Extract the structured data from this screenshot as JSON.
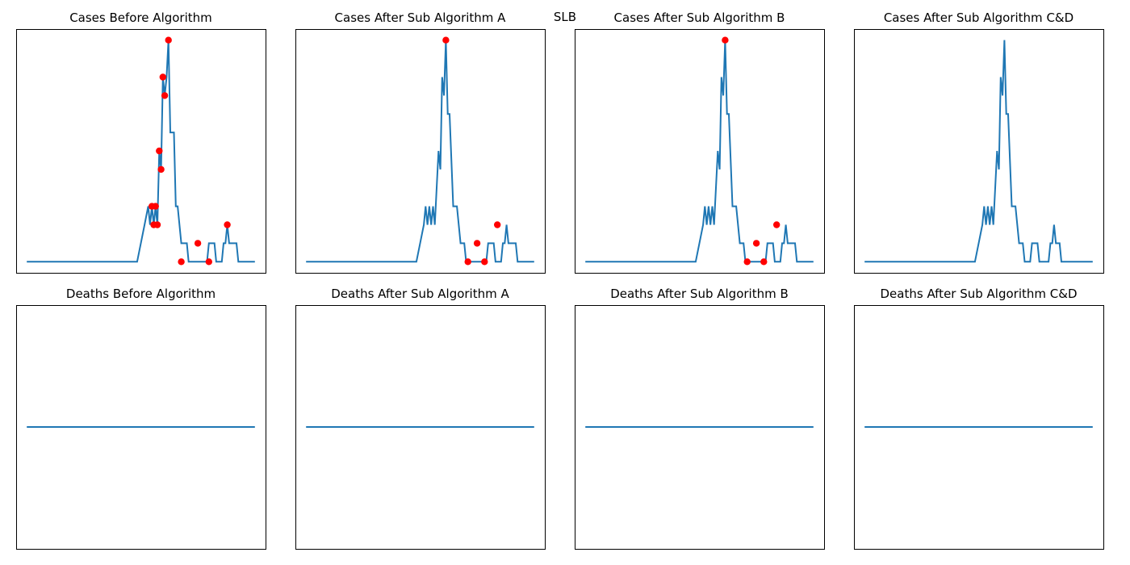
{
  "suptitle": "SLB",
  "style": {
    "line_color": "#1f77b4",
    "marker_color": "#ff0000",
    "frame_color": "#000000"
  },
  "chart_data": [
    {
      "type": "line",
      "title": "Cases Before Algorithm",
      "axes_visible": false,
      "y_step": [
        [
          0,
          0
        ],
        [
          30,
          0
        ],
        [
          31,
          1
        ],
        [
          32,
          2
        ],
        [
          33,
          3
        ],
        [
          33.5,
          2
        ],
        [
          34,
          3
        ],
        [
          34.5,
          2
        ],
        [
          35,
          3
        ],
        [
          35.5,
          2
        ],
        [
          36,
          6
        ],
        [
          36.5,
          5
        ],
        [
          37,
          10
        ],
        [
          37.5,
          9
        ],
        [
          38,
          10
        ],
        [
          38.5,
          12
        ],
        [
          39,
          7
        ],
        [
          40,
          7
        ],
        [
          40.5,
          3
        ],
        [
          41,
          3
        ],
        [
          42,
          1
        ],
        [
          43.5,
          1
        ],
        [
          44,
          0
        ],
        [
          49,
          0
        ],
        [
          49.5,
          1
        ],
        [
          51,
          1
        ],
        [
          51.5,
          0
        ],
        [
          53,
          0
        ],
        [
          53.5,
          1
        ],
        [
          54,
          1
        ],
        [
          54.5,
          2
        ],
        [
          55,
          1
        ],
        [
          57,
          1
        ],
        [
          57.5,
          0
        ],
        [
          62,
          0
        ]
      ],
      "markers": [
        [
          34,
          3
        ],
        [
          34.5,
          2
        ],
        [
          35,
          3
        ],
        [
          35.5,
          2
        ],
        [
          36,
          6
        ],
        [
          36.5,
          5
        ],
        [
          37,
          10
        ],
        [
          37.5,
          9
        ],
        [
          38.5,
          12
        ],
        [
          42,
          0
        ],
        [
          46.5,
          1
        ],
        [
          49.5,
          0
        ],
        [
          54.5,
          2
        ]
      ],
      "ylim": [
        -0.6,
        12.6
      ],
      "xlim": [
        -2.9,
        64.9
      ]
    },
    {
      "type": "line",
      "title": "Cases After Sub Algorithm A",
      "axes_visible": false,
      "y_step": [
        [
          0,
          0
        ],
        [
          30,
          0
        ],
        [
          31,
          1
        ],
        [
          32,
          2
        ],
        [
          32.5,
          3
        ],
        [
          33,
          2
        ],
        [
          33.5,
          3
        ],
        [
          34,
          2
        ],
        [
          34.5,
          3
        ],
        [
          35,
          2
        ],
        [
          36,
          6
        ],
        [
          36.5,
          5
        ],
        [
          37,
          10
        ],
        [
          37.5,
          9
        ],
        [
          38,
          12
        ],
        [
          38.5,
          8
        ],
        [
          39,
          8
        ],
        [
          40,
          3
        ],
        [
          41,
          3
        ],
        [
          42,
          1
        ],
        [
          43,
          1
        ],
        [
          43.5,
          0
        ],
        [
          49,
          0
        ],
        [
          49.5,
          1
        ],
        [
          51,
          1
        ],
        [
          51.5,
          0
        ],
        [
          53,
          0
        ],
        [
          53.5,
          1
        ],
        [
          54,
          1
        ],
        [
          54.5,
          2
        ],
        [
          55,
          1
        ],
        [
          57,
          1
        ],
        [
          57.5,
          0
        ],
        [
          62,
          0
        ]
      ],
      "markers": [
        [
          38,
          12
        ],
        [
          44,
          0
        ],
        [
          46.5,
          1
        ],
        [
          48.5,
          0
        ],
        [
          52,
          2
        ]
      ],
      "ylim": [
        -0.6,
        12.6
      ],
      "xlim": [
        -2.9,
        64.9
      ]
    },
    {
      "type": "line",
      "title": "Cases After Sub Algorithm B",
      "axes_visible": false,
      "y_step": [
        [
          0,
          0
        ],
        [
          30,
          0
        ],
        [
          31,
          1
        ],
        [
          32,
          2
        ],
        [
          32.5,
          3
        ],
        [
          33,
          2
        ],
        [
          33.5,
          3
        ],
        [
          34,
          2
        ],
        [
          34.5,
          3
        ],
        [
          35,
          2
        ],
        [
          36,
          6
        ],
        [
          36.5,
          5
        ],
        [
          37,
          10
        ],
        [
          37.5,
          9
        ],
        [
          38,
          12
        ],
        [
          38.5,
          8
        ],
        [
          39,
          8
        ],
        [
          40,
          3
        ],
        [
          41,
          3
        ],
        [
          42,
          1
        ],
        [
          43,
          1
        ],
        [
          43.5,
          0
        ],
        [
          49,
          0
        ],
        [
          49.5,
          1
        ],
        [
          51,
          1
        ],
        [
          51.5,
          0
        ],
        [
          53,
          0
        ],
        [
          53.5,
          1
        ],
        [
          54,
          1
        ],
        [
          54.5,
          2
        ],
        [
          55,
          1
        ],
        [
          57,
          1
        ],
        [
          57.5,
          0
        ],
        [
          62,
          0
        ]
      ],
      "markers": [
        [
          38,
          12
        ],
        [
          44,
          0
        ],
        [
          46.5,
          1
        ],
        [
          48.5,
          0
        ],
        [
          52,
          2
        ]
      ],
      "ylim": [
        -0.6,
        12.6
      ],
      "xlim": [
        -2.9,
        64.9
      ]
    },
    {
      "type": "line",
      "title": "Cases After Sub Algorithm C&D",
      "axes_visible": false,
      "y_step": [
        [
          0,
          0
        ],
        [
          30,
          0
        ],
        [
          31,
          1
        ],
        [
          32,
          2
        ],
        [
          32.5,
          3
        ],
        [
          33,
          2
        ],
        [
          33.5,
          3
        ],
        [
          34,
          2
        ],
        [
          34.5,
          3
        ],
        [
          35,
          2
        ],
        [
          36,
          6
        ],
        [
          36.5,
          5
        ],
        [
          37,
          10
        ],
        [
          37.5,
          9
        ],
        [
          38,
          12
        ],
        [
          38.5,
          8
        ],
        [
          39,
          8
        ],
        [
          40,
          3
        ],
        [
          41,
          3
        ],
        [
          42,
          1
        ],
        [
          43,
          1
        ],
        [
          43.5,
          0
        ],
        [
          45,
          0
        ],
        [
          45.5,
          1
        ],
        [
          47,
          1
        ],
        [
          47.5,
          0
        ],
        [
          50,
          0
        ],
        [
          50.5,
          1
        ],
        [
          51,
          1
        ],
        [
          51.5,
          2
        ],
        [
          52,
          1
        ],
        [
          53,
          1
        ],
        [
          53.5,
          0
        ],
        [
          62,
          0
        ]
      ],
      "markers": [],
      "ylim": [
        -0.6,
        12.6
      ],
      "xlim": [
        -2.9,
        64.9
      ]
    },
    {
      "type": "line",
      "title": "Deaths Before Algorithm",
      "axes_visible": false,
      "y_step": [
        [
          0,
          0
        ],
        [
          62,
          0
        ]
      ],
      "markers": [],
      "ylim": [
        -0.055,
        0.055
      ],
      "xlim": [
        -2.9,
        64.9
      ]
    },
    {
      "type": "line",
      "title": "Deaths After Sub Algorithm A",
      "axes_visible": false,
      "y_step": [
        [
          0,
          0
        ],
        [
          62,
          0
        ]
      ],
      "markers": [],
      "ylim": [
        -0.055,
        0.055
      ],
      "xlim": [
        -2.9,
        64.9
      ]
    },
    {
      "type": "line",
      "title": "Deaths After Sub Algorithm B",
      "axes_visible": false,
      "y_step": [
        [
          0,
          0
        ],
        [
          62,
          0
        ]
      ],
      "markers": [],
      "ylim": [
        -0.055,
        0.055
      ],
      "xlim": [
        -2.9,
        64.9
      ]
    },
    {
      "type": "line",
      "title": "Deaths After Sub Algorithm C&D",
      "axes_visible": false,
      "y_step": [
        [
          0,
          0
        ],
        [
          62,
          0
        ]
      ],
      "markers": [],
      "ylim": [
        -0.055,
        0.055
      ],
      "xlim": [
        -2.9,
        64.9
      ]
    }
  ]
}
